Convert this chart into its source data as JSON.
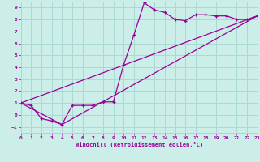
{
  "xlabel": "Windchill (Refroidissement éolien,°C)",
  "background_color": "#cceee8",
  "grid_color": "#aad8d2",
  "line_color": "#990099",
  "xlim": [
    0,
    23
  ],
  "ylim": [
    -1.5,
    9.5
  ],
  "xticks": [
    0,
    1,
    2,
    3,
    4,
    5,
    6,
    7,
    8,
    9,
    10,
    11,
    12,
    13,
    14,
    15,
    16,
    17,
    18,
    19,
    20,
    21,
    22,
    23
  ],
  "yticks": [
    -1,
    0,
    1,
    2,
    3,
    4,
    5,
    6,
    7,
    8,
    9
  ],
  "line1_x": [
    0,
    1,
    2,
    3,
    4,
    5,
    6,
    7,
    8,
    9,
    10,
    11,
    12,
    13,
    14,
    15,
    16,
    17,
    18,
    19,
    20,
    21,
    22,
    23
  ],
  "line1_y": [
    1.0,
    0.8,
    -0.3,
    -0.5,
    -0.8,
    0.8,
    0.8,
    0.8,
    1.1,
    1.1,
    4.2,
    6.7,
    9.4,
    8.8,
    8.6,
    8.0,
    7.9,
    8.4,
    8.4,
    8.3,
    8.3,
    8.0,
    8.0,
    8.3
  ],
  "line2_x": [
    0,
    23
  ],
  "line2_y": [
    1.0,
    8.3
  ],
  "line3_x": [
    0,
    4,
    23
  ],
  "line3_y": [
    1.0,
    -0.8,
    8.3
  ]
}
